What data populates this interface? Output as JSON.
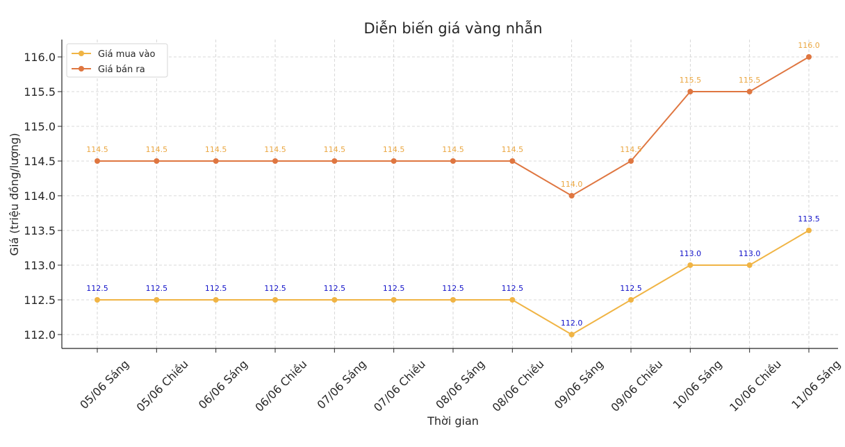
{
  "chart_data": {
    "type": "line",
    "title": "Diễn biến giá vàng nhẫn",
    "xlabel": "Thời gian",
    "ylabel": "Giá (triệu đồng/lượng)",
    "categories": [
      "05/06 Sáng",
      "05/06 Chiều",
      "06/06 Sáng",
      "06/06 Chiều",
      "07/06 Sáng",
      "07/06 Chiều",
      "08/06 Sáng",
      "08/06 Chiều",
      "09/06 Sáng",
      "09/06 Chiều",
      "10/06 Sáng",
      "10/06 Chiều",
      "11/06 Sáng"
    ],
    "ylim": [
      111.8,
      116.25
    ],
    "yticks": [
      "112.0",
      "112.5",
      "113.0",
      "113.5",
      "114.0",
      "114.5",
      "115.0",
      "115.5",
      "116.0"
    ],
    "grid": true,
    "legend_position": "top-left",
    "series": [
      {
        "name": "Giá mua vào",
        "color": "#F0B444",
        "label_color": "#1010C8",
        "values": [
          112.5,
          112.5,
          112.5,
          112.5,
          112.5,
          112.5,
          112.5,
          112.5,
          112.0,
          112.5,
          113.0,
          113.0,
          113.5
        ],
        "labels": [
          "112.5",
          "112.5",
          "112.5",
          "112.5",
          "112.5",
          "112.5",
          "112.5",
          "112.5",
          "112.0",
          "112.5",
          "113.0",
          "113.0",
          "113.5"
        ]
      },
      {
        "name": "Giá bán ra",
        "color": "#DF7640",
        "label_color": "#EAA640",
        "values": [
          114.5,
          114.5,
          114.5,
          114.5,
          114.5,
          114.5,
          114.5,
          114.5,
          114.0,
          114.5,
          115.5,
          115.5,
          116.0
        ],
        "labels": [
          "114.5",
          "114.5",
          "114.5",
          "114.5",
          "114.5",
          "114.5",
          "114.5",
          "114.5",
          "114.0",
          "114.5",
          "115.5",
          "115.5",
          "116.0"
        ]
      }
    ]
  }
}
